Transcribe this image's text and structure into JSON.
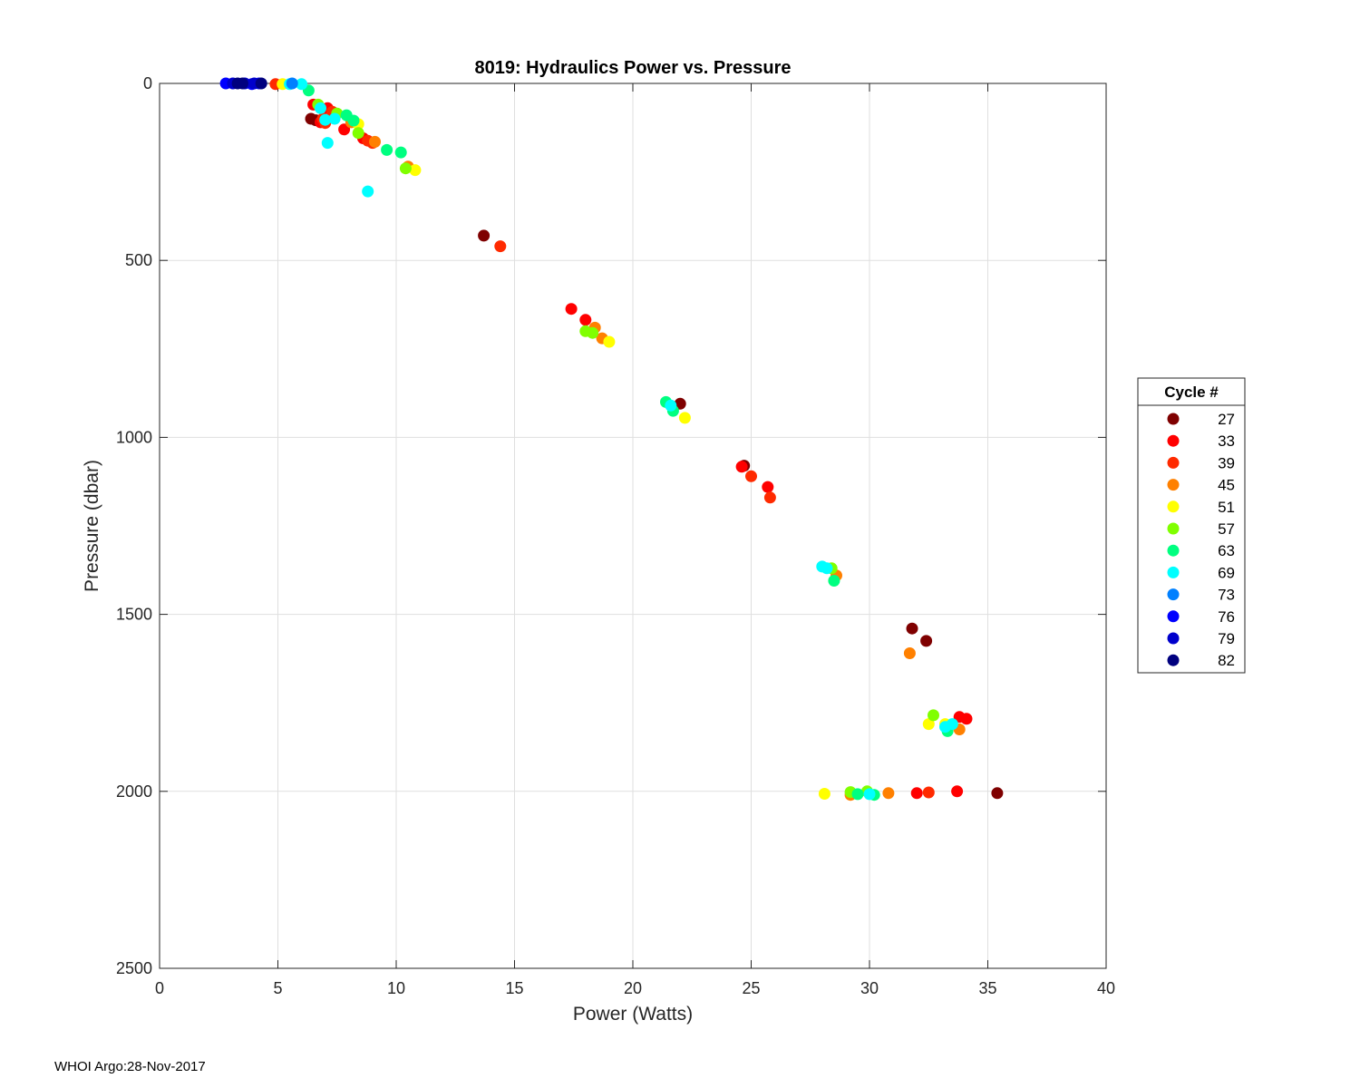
{
  "chart_data": {
    "type": "scatter",
    "title": "8019: Hydraulics Power vs. Pressure",
    "xlabel": "Power (Watts)",
    "ylabel": "Pressure (dbar)",
    "xlim": [
      0,
      40
    ],
    "ylim": [
      0,
      2500
    ],
    "y_reversed": true,
    "xticks": [
      0,
      5,
      10,
      15,
      20,
      25,
      30,
      35,
      40
    ],
    "yticks": [
      0,
      500,
      1000,
      1500,
      2000,
      2500
    ],
    "grid": true,
    "legend": {
      "title": "Cycle #",
      "placement": "right",
      "entries": [
        {
          "label": "27",
          "color": "#7f0000"
        },
        {
          "label": "33",
          "color": "#ff0000"
        },
        {
          "label": "39",
          "color": "#ff2a00"
        },
        {
          "label": "45",
          "color": "#ff8000"
        },
        {
          "label": "51",
          "color": "#ffff00"
        },
        {
          "label": "57",
          "color": "#80ff00"
        },
        {
          "label": "63",
          "color": "#00ff80"
        },
        {
          "label": "69",
          "color": "#00ffff"
        },
        {
          "label": "73",
          "color": "#0080ff"
        },
        {
          "label": "76",
          "color": "#0000ff"
        },
        {
          "label": "79",
          "color": "#0000cc"
        },
        {
          "label": "82",
          "color": "#00007f"
        }
      ]
    },
    "series": [
      {
        "color": "#7f0000",
        "points": [
          [
            13.7,
            430
          ],
          [
            22.0,
            905
          ],
          [
            24.7,
            1080
          ],
          [
            31.8,
            1540
          ],
          [
            32.4,
            1575
          ],
          [
            35.4,
            2005
          ],
          [
            6.4,
            100
          ],
          [
            6.6,
            104
          ]
        ]
      },
      {
        "color": "#ff0000",
        "points": [
          [
            6.5,
            60
          ],
          [
            7.1,
            70
          ],
          [
            7.8,
            130
          ],
          [
            8.6,
            155
          ],
          [
            17.4,
            637
          ],
          [
            18.0,
            668
          ],
          [
            24.6,
            1083
          ],
          [
            25.7,
            1140
          ],
          [
            32.0,
            2005
          ],
          [
            33.7,
            2000
          ],
          [
            33.8,
            1790
          ],
          [
            34.1,
            1795
          ],
          [
            6.8,
            110
          ]
        ]
      },
      {
        "color": "#ff2a00",
        "points": [
          [
            4.9,
            2
          ],
          [
            7.3,
            80
          ],
          [
            8.8,
            162
          ],
          [
            9.0,
            168
          ],
          [
            14.4,
            460
          ],
          [
            25.0,
            1110
          ],
          [
            25.8,
            1170
          ],
          [
            32.5,
            2003
          ],
          [
            6.9,
            100
          ],
          [
            7.0,
            112
          ]
        ]
      },
      {
        "color": "#ff8000",
        "points": [
          [
            8.1,
            110
          ],
          [
            9.1,
            165
          ],
          [
            10.5,
            235
          ],
          [
            18.4,
            690
          ],
          [
            18.7,
            720
          ],
          [
            28.6,
            1390
          ],
          [
            31.7,
            1610
          ],
          [
            33.8,
            1825
          ],
          [
            29.2,
            2010
          ],
          [
            30.8,
            2005
          ]
        ]
      },
      {
        "color": "#ffff00",
        "points": [
          [
            5.2,
            2
          ],
          [
            8.4,
            115
          ],
          [
            10.8,
            245
          ],
          [
            19.0,
            730
          ],
          [
            22.2,
            945
          ],
          [
            28.1,
            2007
          ],
          [
            32.5,
            1810
          ],
          [
            33.2,
            1810
          ]
        ]
      },
      {
        "color": "#80ff00",
        "points": [
          [
            7.5,
            85
          ],
          [
            8.4,
            140
          ],
          [
            10.4,
            240
          ],
          [
            18.0,
            700
          ],
          [
            18.3,
            705
          ],
          [
            28.4,
            1370
          ],
          [
            29.2,
            2002
          ],
          [
            29.9,
            2000
          ],
          [
            32.7,
            1785
          ],
          [
            6.7,
            60
          ]
        ]
      },
      {
        "color": "#00ff80",
        "points": [
          [
            6.3,
            20
          ],
          [
            8.2,
            105
          ],
          [
            9.6,
            188
          ],
          [
            10.2,
            195
          ],
          [
            21.4,
            900
          ],
          [
            21.7,
            925
          ],
          [
            28.5,
            1405
          ],
          [
            33.3,
            1830
          ],
          [
            29.5,
            2008
          ],
          [
            30.2,
            2010
          ],
          [
            7.9,
            90
          ]
        ]
      },
      {
        "color": "#00ffff",
        "points": [
          [
            5.5,
            2
          ],
          [
            6.0,
            2
          ],
          [
            6.8,
            70
          ],
          [
            7.0,
            103
          ],
          [
            7.1,
            168
          ],
          [
            8.8,
            305
          ],
          [
            21.6,
            910
          ],
          [
            28.0,
            1365
          ],
          [
            28.2,
            1370
          ],
          [
            33.5,
            1810
          ],
          [
            33.2,
            1818
          ],
          [
            30.0,
            2008
          ],
          [
            7.4,
            100
          ]
        ]
      },
      {
        "color": "#0080ff",
        "points": [
          [
            5.6,
            0
          ]
        ]
      },
      {
        "color": "#0000ff",
        "points": [
          [
            2.8,
            0
          ],
          [
            3.9,
            2
          ],
          [
            4.2,
            0
          ]
        ]
      },
      {
        "color": "#0000cc",
        "points": [
          [
            3.1,
            0
          ],
          [
            3.6,
            0
          ],
          [
            4.0,
            0
          ]
        ]
      },
      {
        "color": "#00007f",
        "points": [
          [
            3.3,
            0
          ],
          [
            3.5,
            0
          ],
          [
            4.3,
            0
          ]
        ]
      }
    ]
  },
  "footer": "WHOI Argo:28-Nov-2017"
}
